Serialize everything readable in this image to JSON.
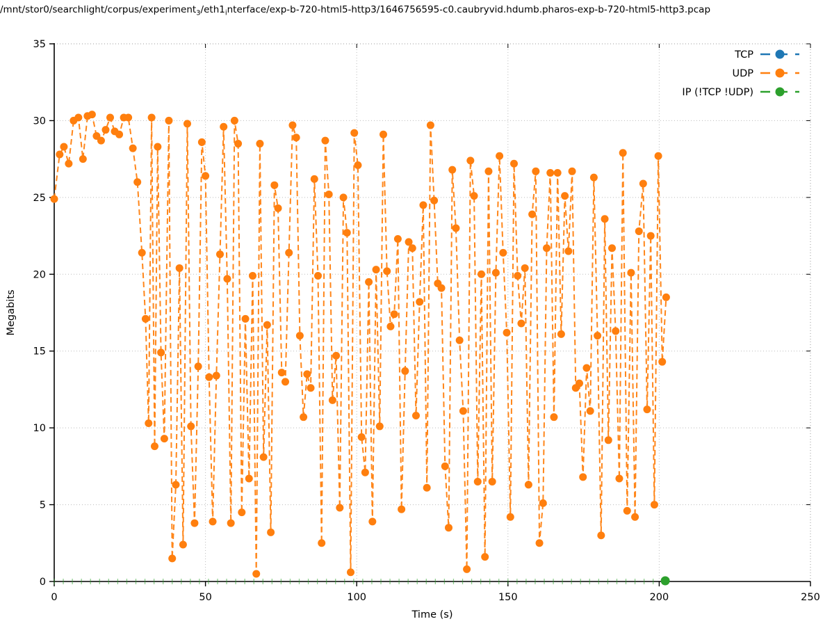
{
  "title": {
    "part1": "/mnt/stor0/searchlight/corpus/experiment",
    "sub1": "3",
    "part2": "/eth1",
    "sub2": "i",
    "part3": "nterface/exp-b-720-html5-http3/1646756595-c0.caubryvid.hdumb.pharos-exp-b-720-html5-http3.pcap"
  },
  "axes": {
    "x_label": "Time (s)",
    "y_label": "Megabits",
    "x_ticks": [
      0,
      50,
      100,
      150,
      200,
      250
    ],
    "y_ticks": [
      0,
      5,
      10,
      15,
      20,
      25,
      30,
      35
    ]
  },
  "legend": {
    "position": "top-right",
    "entries": [
      {
        "label": "TCP",
        "color": "#1f77b4"
      },
      {
        "label": "UDP",
        "color": "#ff7f0e"
      },
      {
        "label": "IP (!TCP  !UDP)",
        "color": "#2ca02c"
      }
    ]
  },
  "chart_data": {
    "type": "line",
    "title": "/mnt/stor0/searchlight/corpus/experiment_3/eth1_interface/exp-b-720-html5-http3/1646756595-c0.caubryvid.hdumb.pharos-exp-b-720-html5-http3.pcap",
    "xlabel": "Time (s)",
    "ylabel": "Megabits",
    "xlim": [
      0,
      250
    ],
    "ylim": [
      0,
      35
    ],
    "grid": true,
    "marker": "circle",
    "line_style": "dashed",
    "series": [
      {
        "name": "TCP",
        "color": "#1f77b4",
        "points": []
      },
      {
        "name": "UDP",
        "color": "#ff7f0e",
        "points": [
          [
            0,
            24.9
          ],
          [
            1.8,
            27.8
          ],
          [
            3.2,
            28.3
          ],
          [
            4.8,
            27.2
          ],
          [
            6.4,
            30.0
          ],
          [
            8,
            30.2
          ],
          [
            9.5,
            27.5
          ],
          [
            11,
            30.3
          ],
          [
            12.5,
            30.4
          ],
          [
            14,
            29.0
          ],
          [
            15.5,
            28.7
          ],
          [
            17,
            29.4
          ],
          [
            18.5,
            30.2
          ],
          [
            20,
            29.3
          ],
          [
            21.5,
            29.1
          ],
          [
            23,
            30.2
          ],
          [
            24.5,
            30.2
          ],
          [
            26,
            28.2
          ],
          [
            27.5,
            26.0
          ],
          [
            29,
            21.4
          ],
          [
            30.2,
            17.1
          ],
          [
            31.2,
            10.3
          ],
          [
            32.2,
            30.2
          ],
          [
            33.2,
            8.8
          ],
          [
            34.2,
            28.3
          ],
          [
            35.3,
            14.9
          ],
          [
            36.4,
            9.3
          ],
          [
            37.9,
            30.0
          ],
          [
            39,
            1.5
          ],
          [
            40.2,
            6.3
          ],
          [
            41.4,
            20.4
          ],
          [
            42.6,
            2.4
          ],
          [
            44,
            29.8
          ],
          [
            45.2,
            10.1
          ],
          [
            46.4,
            3.8
          ],
          [
            47.6,
            14.0
          ],
          [
            48.8,
            28.6
          ],
          [
            50,
            26.4
          ],
          [
            51.2,
            13.3
          ],
          [
            52.4,
            3.9
          ],
          [
            53.6,
            13.4
          ],
          [
            54.8,
            21.3
          ],
          [
            56,
            29.6
          ],
          [
            57.2,
            19.7
          ],
          [
            58.4,
            3.8
          ],
          [
            59.6,
            30.0
          ],
          [
            60.8,
            28.5
          ],
          [
            62,
            4.5
          ],
          [
            63.2,
            17.1
          ],
          [
            64.4,
            6.7
          ],
          [
            65.6,
            19.9
          ],
          [
            66.8,
            0.5
          ],
          [
            68,
            28.5
          ],
          [
            69.2,
            8.1
          ],
          [
            70.4,
            16.7
          ],
          [
            71.6,
            3.2
          ],
          [
            72.8,
            25.8
          ],
          [
            74,
            24.3
          ],
          [
            75.2,
            13.6
          ],
          [
            76.4,
            13.0
          ],
          [
            77.6,
            21.4
          ],
          [
            78.8,
            29.7
          ],
          [
            80,
            28.9
          ],
          [
            81.2,
            16.0
          ],
          [
            82.4,
            10.7
          ],
          [
            83.6,
            13.5
          ],
          [
            84.8,
            12.6
          ],
          [
            86,
            26.2
          ],
          [
            87.2,
            19.9
          ],
          [
            88.4,
            2.5
          ],
          [
            89.6,
            28.7
          ],
          [
            90.8,
            25.2
          ],
          [
            92,
            11.8
          ],
          [
            93.2,
            14.7
          ],
          [
            94.4,
            4.8
          ],
          [
            95.6,
            25.0
          ],
          [
            96.8,
            22.7
          ],
          [
            98,
            0.6
          ],
          [
            99.2,
            29.2
          ],
          [
            100.4,
            27.1
          ],
          [
            101.6,
            9.4
          ],
          [
            102.8,
            7.1
          ],
          [
            104,
            19.5
          ],
          [
            105.2,
            3.9
          ],
          [
            106.4,
            20.3
          ],
          [
            107.6,
            10.1
          ],
          [
            108.8,
            29.1
          ],
          [
            110,
            20.2
          ],
          [
            111.2,
            16.6
          ],
          [
            112.4,
            17.4
          ],
          [
            113.6,
            22.3
          ],
          [
            114.8,
            4.7
          ],
          [
            116,
            13.7
          ],
          [
            117.2,
            22.1
          ],
          [
            118.4,
            21.7
          ],
          [
            119.6,
            10.8
          ],
          [
            120.8,
            18.2
          ],
          [
            122,
            24.5
          ],
          [
            123.2,
            6.1
          ],
          [
            124.4,
            29.7
          ],
          [
            125.6,
            24.8
          ],
          [
            126.8,
            19.4
          ],
          [
            128,
            19.1
          ],
          [
            129.2,
            7.5
          ],
          [
            130.4,
            3.5
          ],
          [
            131.6,
            26.8
          ],
          [
            132.8,
            23.0
          ],
          [
            134,
            15.7
          ],
          [
            135.2,
            11.1
          ],
          [
            136.4,
            0.8
          ],
          [
            137.6,
            27.4
          ],
          [
            138.8,
            25.1
          ],
          [
            140,
            6.5
          ],
          [
            141.2,
            20.0
          ],
          [
            142.4,
            1.6
          ],
          [
            143.6,
            26.7
          ],
          [
            144.8,
            6.5
          ],
          [
            146,
            20.1
          ],
          [
            147.2,
            27.7
          ],
          [
            148.4,
            21.4
          ],
          [
            149.6,
            16.2
          ],
          [
            150.8,
            4.2
          ],
          [
            152,
            27.2
          ],
          [
            153.2,
            19.9
          ],
          [
            154.4,
            16.8
          ],
          [
            155.6,
            20.4
          ],
          [
            156.8,
            6.3
          ],
          [
            158,
            23.9
          ],
          [
            159.2,
            26.7
          ],
          [
            160.4,
            2.5
          ],
          [
            161.6,
            5.1
          ],
          [
            162.8,
            21.7
          ],
          [
            164,
            26.6
          ],
          [
            165.2,
            10.7
          ],
          [
            166.4,
            26.6
          ],
          [
            167.6,
            16.1
          ],
          [
            168.8,
            25.1
          ],
          [
            170,
            21.5
          ],
          [
            171.2,
            26.7
          ],
          [
            172.4,
            12.6
          ],
          [
            173.6,
            12.9
          ],
          [
            174.8,
            6.8
          ],
          [
            176,
            13.9
          ],
          [
            177.2,
            11.1
          ],
          [
            178.4,
            26.3
          ],
          [
            179.6,
            16.0
          ],
          [
            180.8,
            3.0
          ],
          [
            182,
            23.6
          ],
          [
            183.2,
            9.2
          ],
          [
            184.4,
            21.7
          ],
          [
            185.6,
            16.3
          ],
          [
            186.8,
            6.7
          ],
          [
            188,
            27.9
          ],
          [
            189.4,
            4.6
          ],
          [
            190.7,
            20.1
          ],
          [
            192,
            4.2
          ],
          [
            193.3,
            22.8
          ],
          [
            194.7,
            25.9
          ],
          [
            196,
            11.2
          ],
          [
            197.2,
            22.5
          ],
          [
            198.4,
            5.0
          ],
          [
            199.7,
            27.7
          ],
          [
            201,
            14.3
          ],
          [
            202.3,
            18.5
          ]
        ]
      },
      {
        "name": "IP (!TCP  !UDP)",
        "color": "#2ca02c",
        "points_rule": {
          "t_start": 0,
          "t_end": 201,
          "interval": 3,
          "value": 0
        },
        "last_point": [
          202,
          0
        ]
      }
    ]
  }
}
